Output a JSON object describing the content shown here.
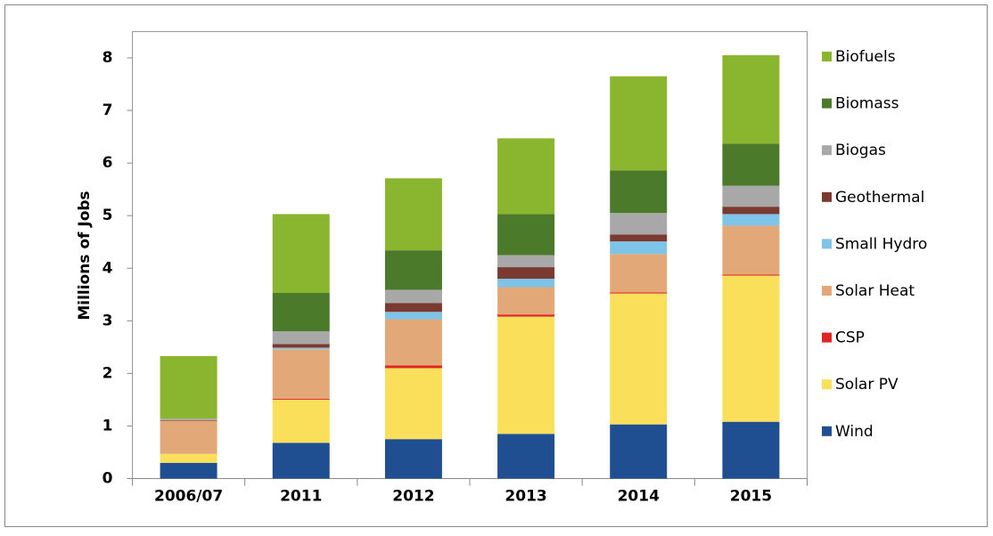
{
  "chart_data": {
    "type": "stacked_bar",
    "y_axis_label": "Millions of Jobs",
    "categories": [
      "2006/07",
      "2011",
      "2012",
      "2013",
      "2014",
      "2015"
    ],
    "series": [
      {
        "name": "Wind",
        "color": "#1f4e91",
        "values": [
          0.3,
          0.68,
          0.75,
          0.85,
          1.03,
          1.08
        ]
      },
      {
        "name": "Solar PV",
        "color": "#f9df5a",
        "values": [
          0.17,
          0.82,
          1.35,
          2.23,
          2.49,
          2.78
        ]
      },
      {
        "name": "CSP",
        "color": "#e02424",
        "values": [
          0,
          0.02,
          0.05,
          0.04,
          0.02,
          0.02
        ]
      },
      {
        "name": "Solar Heat",
        "color": "#e3a877",
        "values": [
          0.63,
          0.94,
          0.88,
          0.52,
          0.73,
          0.93
        ]
      },
      {
        "name": "Small Hydro",
        "color": "#7ec3e8",
        "values": [
          0,
          0.03,
          0.14,
          0.16,
          0.24,
          0.22
        ]
      },
      {
        "name": "Geothermal",
        "color": "#7b3a30",
        "values": [
          0.01,
          0.07,
          0.17,
          0.22,
          0.13,
          0.14
        ]
      },
      {
        "name": "Biogas",
        "color": "#a8a8a8",
        "values": [
          0.03,
          0.24,
          0.25,
          0.23,
          0.41,
          0.4
        ]
      },
      {
        "name": "Biomass",
        "color": "#4a7a2a",
        "values": [
          0,
          0.73,
          0.75,
          0.78,
          0.81,
          0.8
        ]
      },
      {
        "name": "Biofuels",
        "color": "#8ab52e",
        "values": [
          1.19,
          1.5,
          1.37,
          1.44,
          1.79,
          1.68
        ]
      }
    ],
    "ylim": [
      0,
      8
    ],
    "yticks": [
      0,
      1,
      2,
      3,
      4,
      5,
      6,
      7,
      8
    ]
  }
}
